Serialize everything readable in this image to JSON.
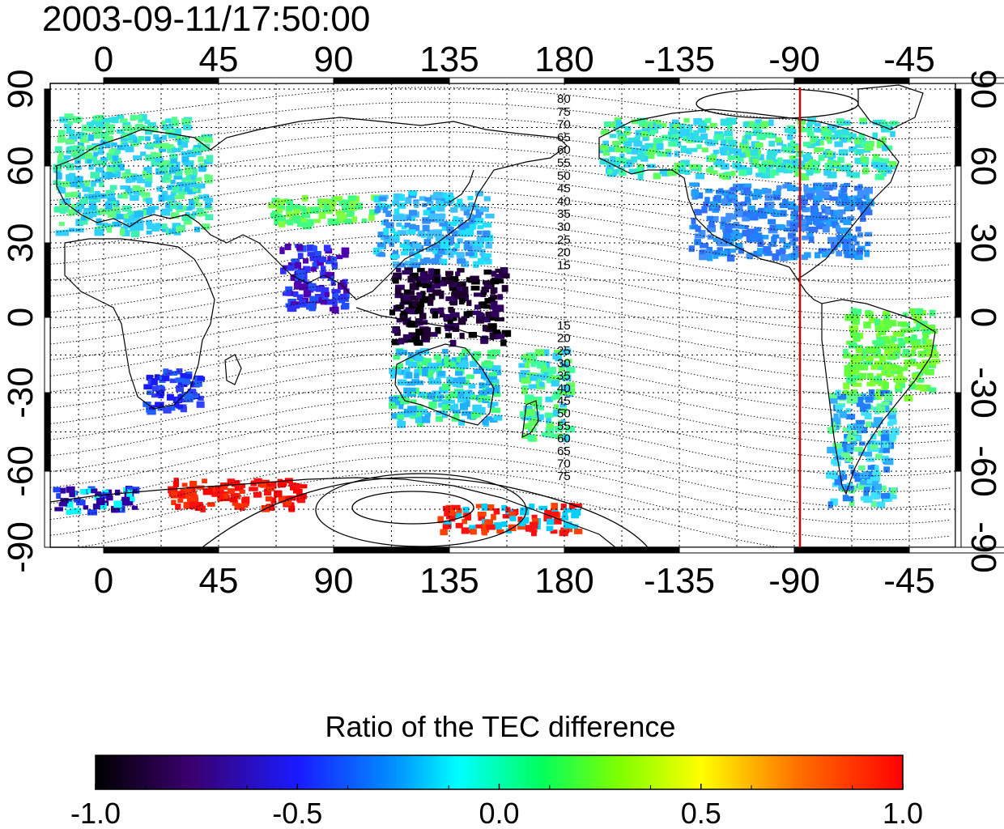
{
  "title": "2003-09-11/17:50:00",
  "lon_ticks": [
    "0",
    "45",
    "90",
    "135",
    "180",
    "-135",
    "-90",
    "-45"
  ],
  "lat_ticks": [
    "90",
    "60",
    "30",
    "0",
    "-30",
    "-60",
    "-90"
  ],
  "contour_labels_north": [
    "80",
    "75",
    "70",
    "65",
    "60",
    "55",
    "50",
    "45",
    "40",
    "35",
    "30",
    "25",
    "20",
    "15"
  ],
  "contour_labels_south": [
    "15",
    "20",
    "25",
    "30",
    "35",
    "40",
    "45",
    "50",
    "55",
    "60",
    "65",
    "70",
    "75"
  ],
  "colorbar": {
    "title": "Ratio of the TEC difference",
    "ticks": [
      "-1.0",
      "-0.5",
      "0.0",
      "0.5",
      "1.0"
    ],
    "min": -1.0,
    "max": 1.0
  },
  "marker_longitude": -90,
  "colors": {
    "marker_line": "#cc0000",
    "frame": "#000000"
  }
}
